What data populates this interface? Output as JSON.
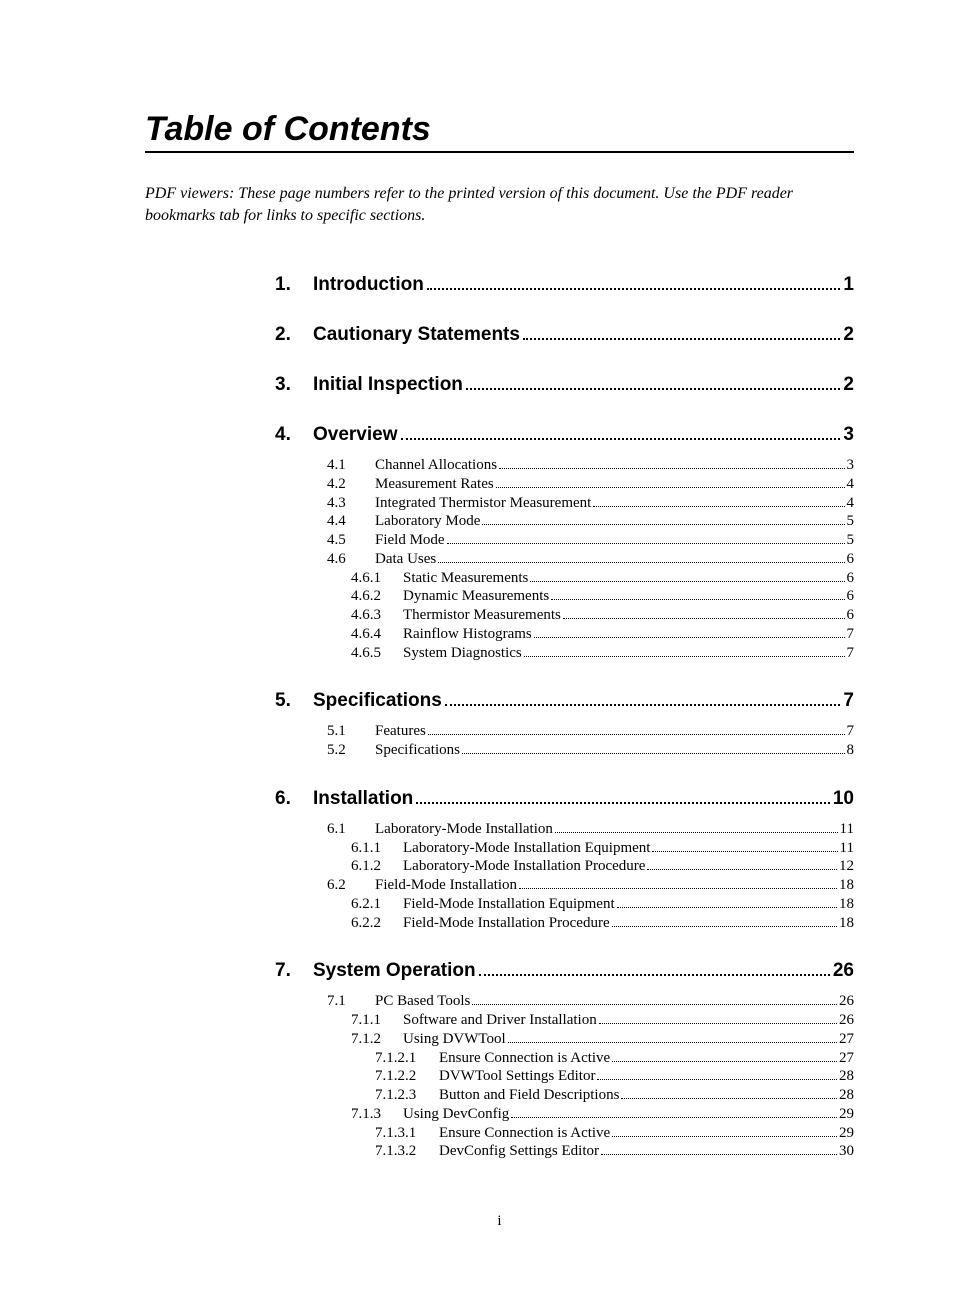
{
  "title": "Table of Contents",
  "note": "PDF viewers:  These page numbers refer to the printed version of this document.  Use the PDF reader bookmarks tab for links to specific sections.",
  "page_number": "i",
  "sections": [
    {
      "num": "1.",
      "title": "Introduction",
      "page": "1",
      "entries": []
    },
    {
      "num": "2.",
      "title": "Cautionary Statements",
      "page": "2",
      "entries": []
    },
    {
      "num": "3.",
      "title": "Initial Inspection",
      "page": "2",
      "entries": []
    },
    {
      "num": "4.",
      "title": "Overview",
      "page": "3",
      "entries": [
        {
          "level": 2,
          "num": "4.1",
          "title": "Channel Allocations",
          "page": "3"
        },
        {
          "level": 2,
          "num": "4.2",
          "title": "Measurement Rates",
          "page": "4"
        },
        {
          "level": 2,
          "num": "4.3",
          "title": "Integrated Thermistor Measurement",
          "page": "4"
        },
        {
          "level": 2,
          "num": "4.4",
          "title": "Laboratory Mode",
          "page": "5"
        },
        {
          "level": 2,
          "num": "4.5",
          "title": "Field Mode",
          "page": "5"
        },
        {
          "level": 2,
          "num": "4.6",
          "title": "Data Uses",
          "page": "6"
        },
        {
          "level": 3,
          "num": "4.6.1",
          "title": "Static Measurements",
          "page": "6"
        },
        {
          "level": 3,
          "num": "4.6.2",
          "title": "Dynamic Measurements",
          "page": "6"
        },
        {
          "level": 3,
          "num": "4.6.3",
          "title": "Thermistor Measurements",
          "page": "6"
        },
        {
          "level": 3,
          "num": "4.6.4",
          "title": "Rainflow Histograms",
          "page": "7"
        },
        {
          "level": 3,
          "num": "4.6.5",
          "title": "System Diagnostics",
          "page": "7"
        }
      ]
    },
    {
      "num": "5.",
      "title": "Specifications",
      "page": "7",
      "entries": [
        {
          "level": 2,
          "num": "5.1",
          "title": "Features",
          "page": "7"
        },
        {
          "level": 2,
          "num": "5.2",
          "title": "Specifications",
          "page": "8"
        }
      ]
    },
    {
      "num": "6.",
      "title": "Installation",
      "page": "10",
      "entries": [
        {
          "level": 2,
          "num": "6.1",
          "title": "Laboratory-Mode Installation",
          "page": "11"
        },
        {
          "level": 3,
          "num": "6.1.1",
          "title": "Laboratory-Mode Installation Equipment",
          "page": "11"
        },
        {
          "level": 3,
          "num": "6.1.2",
          "title": "Laboratory-Mode Installation Procedure",
          "page": "12"
        },
        {
          "level": 2,
          "num": "6.2",
          "title": "Field-Mode Installation",
          "page": "18"
        },
        {
          "level": 3,
          "num": "6.2.1",
          "title": "Field-Mode Installation Equipment",
          "page": "18"
        },
        {
          "level": 3,
          "num": "6.2.2",
          "title": "Field-Mode Installation Procedure",
          "page": "18"
        }
      ]
    },
    {
      "num": "7.",
      "title": "System Operation",
      "page": "26",
      "entries": [
        {
          "level": 2,
          "num": "7.1",
          "title": "PC Based Tools",
          "page": "26"
        },
        {
          "level": 3,
          "num": "7.1.1",
          "title": "Software and Driver Installation",
          "page": "26"
        },
        {
          "level": 3,
          "num": "7.1.2",
          "title": "Using DVWTool",
          "page": "27"
        },
        {
          "level": 4,
          "num": "7.1.2.1",
          "title": "Ensure Connection is Active",
          "page": "27"
        },
        {
          "level": 4,
          "num": "7.1.2.2",
          "title": "DVWTool Settings Editor",
          "page": "28"
        },
        {
          "level": 4,
          "num": "7.1.2.3",
          "title": "Button and Field Descriptions",
          "page": "28"
        },
        {
          "level": 3,
          "num": "7.1.3",
          "title": "Using DevConfig",
          "page": "29"
        },
        {
          "level": 4,
          "num": "7.1.3.1",
          "title": "Ensure Connection is Active",
          "page": "29"
        },
        {
          "level": 4,
          "num": "7.1.3.2",
          "title": "DevConfig Settings Editor",
          "page": "30"
        }
      ]
    }
  ]
}
